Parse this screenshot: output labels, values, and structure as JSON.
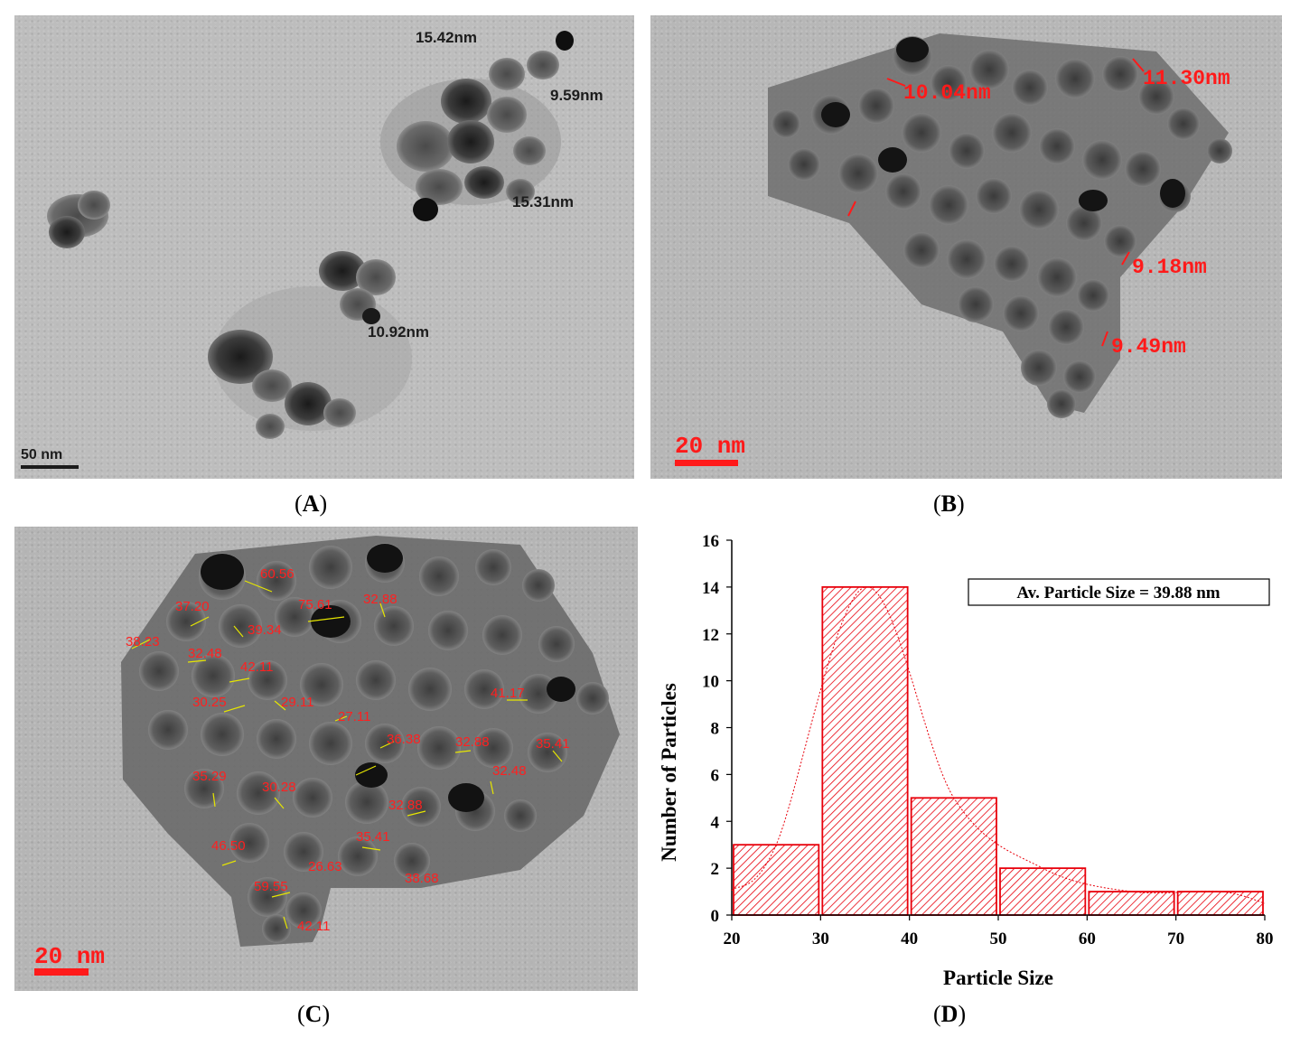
{
  "panels": {
    "a": {
      "caption_open": "(",
      "caption_letter": "A",
      "caption_close": ")",
      "scale_label": "50 nm",
      "labels": [
        "15.42nm",
        "9.59nm",
        "15.31nm",
        "10.92nm"
      ]
    },
    "b": {
      "caption_open": "(",
      "caption_letter": "B",
      "caption_close": ")",
      "scale_label": "20 nm",
      "labels": [
        "10.04nm",
        "11.30nm",
        "9.18nm",
        "9.49nm"
      ]
    },
    "c": {
      "caption_open": "(",
      "caption_letter": "C",
      "caption_close": ")",
      "scale_label": "20 nm",
      "labels": [
        "60.56",
        "37.20",
        "75.61",
        "32.88",
        "38.23",
        "39.34",
        "32.48",
        "42.11",
        "30.25",
        "29.11",
        "27.11",
        "41.17",
        "36.38",
        "32.88",
        "35.41",
        "35.29",
        "30.28",
        "32.48",
        "32.88",
        "35.41",
        "46.50",
        "26.63",
        "38.68",
        "59.55",
        "42.11"
      ]
    },
    "d": {
      "caption_open": "(",
      "caption_letter": "D",
      "caption_close": ")"
    }
  },
  "chart_data": {
    "type": "bar",
    "bins": [
      [
        20,
        30
      ],
      [
        30,
        40
      ],
      [
        40,
        50
      ],
      [
        50,
        60
      ],
      [
        60,
        70
      ],
      [
        70,
        80
      ]
    ],
    "values": [
      3,
      14,
      5,
      2,
      1,
      1
    ],
    "xlabel": "Particle Size",
    "ylabel": "Number of Particles",
    "xlim": [
      20,
      80
    ],
    "ylim": [
      0,
      16
    ],
    "xticks": [
      20,
      30,
      40,
      50,
      60,
      70,
      80
    ],
    "yticks": [
      0,
      2,
      4,
      6,
      8,
      10,
      12,
      14,
      16
    ],
    "annotation": "Av.  Particle Size = 39.88 nm",
    "fit_curve": true,
    "bar_color": "#e8000b",
    "fill": "hatched",
    "grid": false
  }
}
